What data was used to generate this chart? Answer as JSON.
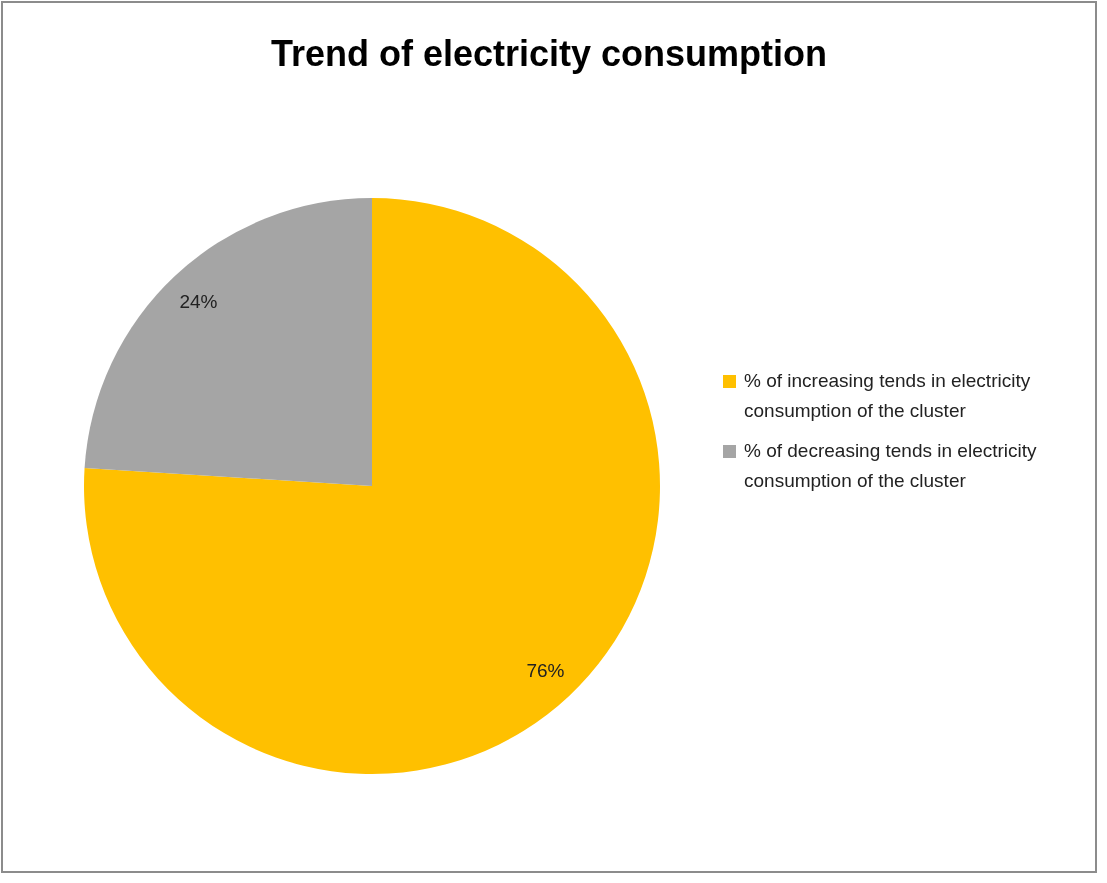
{
  "chart_data": {
    "type": "pie",
    "title": "Trend of electricity consumption",
    "categories": [
      "% of increasing tends in electricity consumption of the cluster",
      "% of decreasing tends in electricity consumption of the cluster"
    ],
    "values": [
      76,
      24
    ],
    "colors": [
      "#ffc000",
      "#a5a5a5"
    ],
    "value_labels": [
      "76%",
      "24%"
    ],
    "legend": "right"
  }
}
